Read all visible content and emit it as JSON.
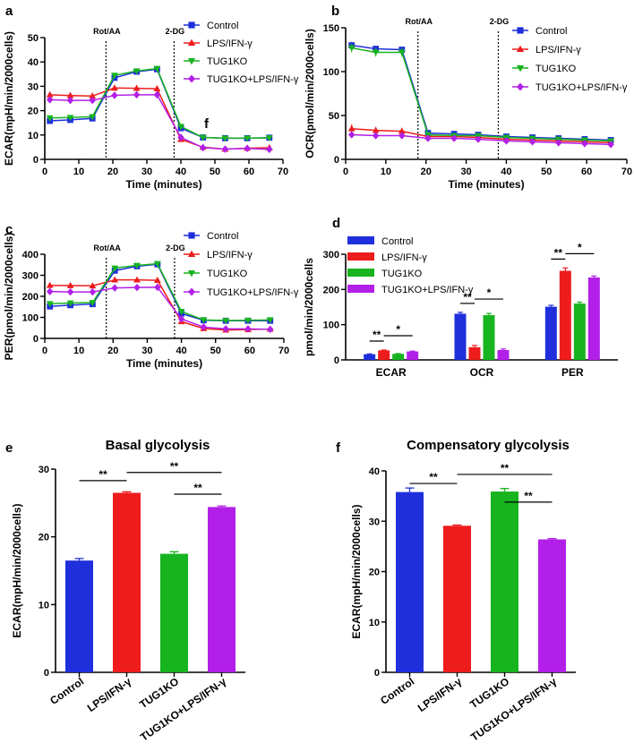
{
  "colors": {
    "Control": "#1f2fdc",
    "LPS/IFN-γ": "#ee1c1c",
    "TUG1KO": "#17b41f",
    "TUG1KO+LPS/IFN-γ": "#b21fe8"
  },
  "chart_data": [
    {
      "id": "a",
      "type": "line",
      "panel_label": "a",
      "xlabel": "Time (minutes)",
      "ylabel": "ECAR(mpH/min/2000cells)",
      "xlim": [
        0,
        70
      ],
      "ylim": [
        0,
        50
      ],
      "xticks": [
        0,
        10,
        20,
        30,
        40,
        50,
        60,
        70
      ],
      "yticks": [
        0,
        10,
        20,
        30,
        40,
        50
      ],
      "injections": [
        {
          "x": 18,
          "label": "Rot/AA"
        },
        {
          "x": 38,
          "label": "2-DG"
        }
      ],
      "annotation": "f",
      "x": [
        1.5,
        7.5,
        14,
        20.5,
        27,
        33,
        40,
        46.5,
        53,
        59.5,
        66
      ],
      "series": [
        {
          "name": "Control",
          "values": [
            15.8,
            16.2,
            16.8,
            33.5,
            36,
            37,
            12.8,
            9,
            8.7,
            8.7,
            8.9
          ],
          "errors": [
            0.6,
            0.6,
            0.6,
            0.8,
            0.6,
            0.6,
            0.8,
            0.5,
            0.4,
            0.4,
            0.4
          ]
        },
        {
          "name": "LPS/IFN-γ",
          "values": [
            26.5,
            26.2,
            26,
            29.3,
            29.2,
            29,
            8.2,
            5,
            4.2,
            4.6,
            4.8
          ],
          "errors": [
            1.2,
            1.2,
            1.4,
            1.2,
            1.2,
            1.2,
            0.6,
            0.4,
            0.4,
            0.4,
            0.4
          ]
        },
        {
          "name": "TUG1KO",
          "values": [
            17,
            17.2,
            17.5,
            34.5,
            36.3,
            37.3,
            13.5,
            9,
            8.7,
            8.7,
            8.8
          ],
          "errors": [
            0.6,
            0.6,
            0.6,
            0.8,
            0.6,
            0.6,
            0.8,
            0.4,
            0.4,
            0.4,
            0.4
          ]
        },
        {
          "name": "TUG1KO+LPS/IFN-γ",
          "values": [
            24.5,
            24.2,
            24.2,
            26.3,
            26.5,
            26.5,
            9,
            4.8,
            4.2,
            4.5,
            4.1
          ],
          "errors": [
            0.6,
            0.6,
            0.6,
            0.6,
            0.6,
            0.6,
            0.6,
            0.4,
            0.4,
            0.4,
            0.4
          ]
        }
      ]
    },
    {
      "id": "b",
      "type": "line",
      "panel_label": "b",
      "xlabel": "Time (minutes)",
      "ylabel": "OCR(pmol/min/2000cells)",
      "xlim": [
        0,
        70
      ],
      "ylim": [
        0,
        150
      ],
      "xticks": [
        0,
        10,
        20,
        30,
        40,
        50,
        60,
        70
      ],
      "yticks": [
        0,
        50,
        100,
        150
      ],
      "injections": [
        {
          "x": 18,
          "label": "Rot/AA"
        },
        {
          "x": 38,
          "label": "2-DG"
        }
      ],
      "x": [
        1.5,
        7.5,
        14,
        20.5,
        27,
        33,
        40,
        46.5,
        53,
        59.5,
        66
      ],
      "series": [
        {
          "name": "Control",
          "values": [
            130,
            126,
            125,
            30,
            29,
            28,
            26,
            25,
            24,
            23,
            22
          ],
          "errors": [
            4,
            3,
            3,
            2,
            2,
            2,
            2,
            2,
            2,
            2,
            2
          ]
        },
        {
          "name": "LPS/IFN-γ",
          "values": [
            35,
            33,
            32,
            26,
            26,
            25,
            23,
            22,
            21,
            20,
            19
          ],
          "errors": [
            5,
            4,
            4,
            3,
            3,
            3,
            3,
            3,
            3,
            3,
            3
          ]
        },
        {
          "name": "TUG1KO",
          "values": [
            127,
            122,
            122,
            28,
            27,
            27,
            25,
            24,
            23,
            22,
            21
          ],
          "errors": [
            5,
            5,
            5,
            2,
            2,
            2,
            2,
            2,
            2,
            2,
            2
          ]
        },
        {
          "name": "TUG1KO+LPS/IFN-γ",
          "values": [
            28,
            27,
            27,
            24,
            24,
            23,
            21,
            20,
            19,
            18,
            17
          ],
          "errors": [
            2,
            2,
            2,
            2,
            2,
            2,
            2,
            2,
            2,
            2,
            2
          ]
        }
      ]
    },
    {
      "id": "c",
      "type": "line",
      "panel_label": "c",
      "xlabel": "Time (minutes)",
      "ylabel": "PER(pmol/min/2000cells)",
      "xlim": [
        0,
        70
      ],
      "ylim": [
        0,
        400
      ],
      "xticks": [
        0,
        10,
        20,
        30,
        40,
        50,
        60,
        70
      ],
      "yticks": [
        0,
        100,
        200,
        300,
        400
      ],
      "injections": [
        {
          "x": 18,
          "label": "Rot/AA"
        },
        {
          "x": 38,
          "label": "2-DG"
        }
      ],
      "x": [
        1.5,
        7.5,
        14,
        20.5,
        27,
        33,
        40,
        46.5,
        53,
        59.5,
        66
      ],
      "series": [
        {
          "name": "Control",
          "values": [
            152,
            158,
            163,
            322,
            343,
            352,
            118,
            86,
            84,
            84,
            84
          ],
          "errors": [
            6,
            6,
            6,
            10,
            8,
            6,
            8,
            5,
            5,
            5,
            5
          ]
        },
        {
          "name": "LPS/IFN-γ",
          "values": [
            252,
            251,
            250,
            278,
            278,
            276,
            80,
            47,
            40,
            42,
            44
          ],
          "errors": [
            10,
            10,
            10,
            10,
            10,
            10,
            6,
            4,
            4,
            4,
            4
          ]
        },
        {
          "name": "TUG1KO",
          "values": [
            165,
            168,
            170,
            334,
            347,
            355,
            128,
            88,
            85,
            86,
            88
          ],
          "errors": [
            6,
            6,
            6,
            10,
            8,
            6,
            8,
            5,
            5,
            5,
            5
          ]
        },
        {
          "name": "TUG1KO+LPS/IFN-γ",
          "values": [
            223,
            221,
            221,
            240,
            242,
            243,
            92,
            54,
            45,
            45,
            43
          ],
          "errors": [
            5,
            5,
            5,
            5,
            5,
            5,
            5,
            4,
            4,
            4,
            4
          ]
        }
      ]
    },
    {
      "id": "d",
      "type": "bar",
      "panel_label": "d",
      "ylabel": "pmol/min/2000cells",
      "ylim": [
        0,
        300
      ],
      "yticks": [
        0,
        100,
        200,
        300
      ],
      "categories": [
        "ECAR",
        "OCR",
        "PER"
      ],
      "series": [
        {
          "name": "Control",
          "values": [
            16,
            131,
            151
          ],
          "errors": [
            1,
            4,
            4
          ]
        },
        {
          "name": "LPS/IFN-γ",
          "values": [
            27,
            36,
            253
          ],
          "errors": [
            1,
            5,
            8
          ]
        },
        {
          "name": "TUG1KO",
          "values": [
            17,
            127,
            160
          ],
          "errors": [
            1,
            5,
            4
          ]
        },
        {
          "name": "TUG1KO+LPS/IFN-γ",
          "values": [
            24,
            28,
            234
          ],
          "errors": [
            1,
            3,
            4
          ]
        }
      ],
      "significance": [
        {
          "category": 0,
          "from": 0,
          "to": 1,
          "label": "**"
        },
        {
          "category": 0,
          "from": 1,
          "to": 3,
          "label": "*"
        },
        {
          "category": 1,
          "from": 0,
          "to": 1,
          "label": "**"
        },
        {
          "category": 1,
          "from": 1,
          "to": 3,
          "label": "*"
        },
        {
          "category": 2,
          "from": 0,
          "to": 1,
          "label": "**"
        },
        {
          "category": 2,
          "from": 1,
          "to": 3,
          "label": "*"
        }
      ]
    },
    {
      "id": "e",
      "type": "bar",
      "panel_label": "e",
      "title": "Basal glycolysis",
      "ylabel": "ECAR(mpH/min/2000cells)",
      "ylim": [
        0,
        30
      ],
      "yticks": [
        0,
        10,
        20,
        30
      ],
      "categories": [
        "Control",
        "LPS/IFN-γ",
        "TUG1KO",
        "TUG1KO+LPS/IFN-γ"
      ],
      "values": [
        16.5,
        26.5,
        17.5,
        24.4
      ],
      "errors": [
        0.3,
        0.15,
        0.3,
        0.15
      ],
      "significance": [
        {
          "from": 0,
          "to": 1,
          "label": "**",
          "y": 28.3
        },
        {
          "from": 1,
          "to": 3,
          "label": "**",
          "y": 29.5
        },
        {
          "from": 2,
          "to": 3,
          "label": "**",
          "y": 26.3
        }
      ]
    },
    {
      "id": "f",
      "type": "bar",
      "panel_label": "f",
      "title": "Compensatory glycolysis",
      "ylabel": "ECAR(mpH/min/2000cells)",
      "ylim": [
        0,
        40
      ],
      "yticks": [
        0,
        10,
        20,
        30,
        40
      ],
      "categories": [
        "Control",
        "LPS/IFN-γ",
        "TUG1KO",
        "TUG1KO+LPS/IFN-γ"
      ],
      "values": [
        35.8,
        29.1,
        35.9,
        26.4
      ],
      "errors": [
        0.8,
        0.15,
        0.6,
        0.15
      ],
      "significance": [
        {
          "from": 0,
          "to": 1,
          "label": "**",
          "y": 37.5
        },
        {
          "from": 1,
          "to": 3,
          "label": "**",
          "y": 39.3
        },
        {
          "from": 2,
          "to": 3,
          "label": "**",
          "y": 33.8
        }
      ]
    }
  ]
}
